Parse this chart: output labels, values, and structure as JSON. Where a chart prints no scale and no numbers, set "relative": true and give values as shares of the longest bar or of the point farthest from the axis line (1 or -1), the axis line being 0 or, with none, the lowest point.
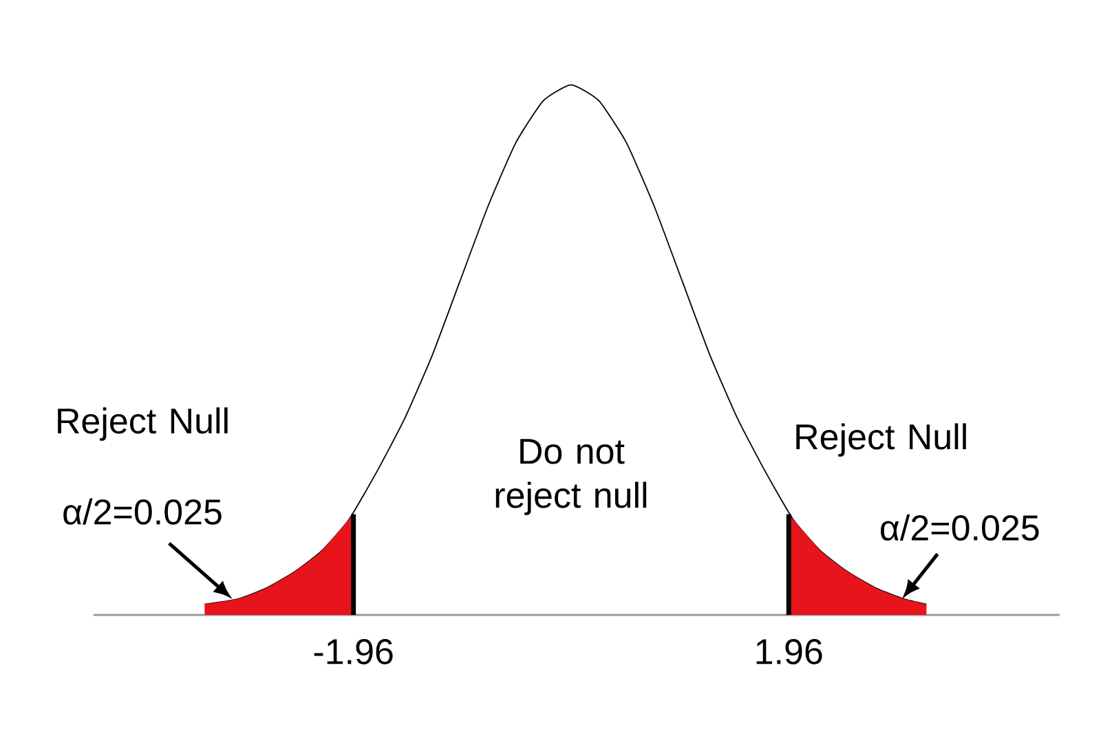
{
  "chart_data": {
    "type": "line",
    "relative": true,
    "xlim": [
      -4.3,
      4.4
    ],
    "xticks": [
      -1.96,
      1.96
    ],
    "tick_labels": "x",
    "series": [
      {
        "color": "#000000",
        "x": [
          -3.3,
          -3.0,
          -2.75,
          -2.5,
          -2.25,
          -2.0,
          -1.75,
          -1.5,
          -1.25,
          -1.0,
          -0.75,
          -0.5,
          -0.25,
          0,
          0.25,
          0.5,
          0.75,
          1.0,
          1.25,
          1.5,
          1.75,
          2.0,
          2.25,
          2.5,
          2.75,
          3.0,
          3.2
        ],
        "values": [
          0.02,
          0.03,
          0.05,
          0.08,
          0.12,
          0.18,
          0.27,
          0.37,
          0.49,
          0.63,
          0.77,
          0.89,
          0.97,
          1,
          0.97,
          0.89,
          0.77,
          0.63,
          0.49,
          0.37,
          0.27,
          0.18,
          0.12,
          0.08,
          0.05,
          0.03,
          0.02
        ]
      },
      {
        "type": "area",
        "color": "#e8141b",
        "x": [
          -3.3,
          -3.0,
          -2.75,
          -2.5,
          -2.25,
          -1.96
        ],
        "values": [
          0.02,
          0.03,
          0.05,
          0.08,
          0.12,
          0.19
        ]
      },
      {
        "type": "area",
        "color": "#e8141b",
        "x": [
          1.96,
          2.25,
          2.5,
          2.75,
          3.0,
          3.2
        ],
        "values": [
          0.19,
          0.12,
          0.08,
          0.05,
          0.03,
          0.02
        ]
      }
    ],
    "ref_lines": [
      {
        "axis": "x",
        "value": -1.96,
        "color": "#000000"
      },
      {
        "axis": "x",
        "value": 1.96,
        "color": "#000000"
      }
    ],
    "annotations": [
      "Reject Null",
      "Do not reject null",
      "Reject Null",
      {
        "text": "α/2=0.025",
        "x": -3.05,
        "y": 0.03
      },
      {
        "text": "α/2=0.025",
        "x": 2.98,
        "y": 0.03
      }
    ]
  }
}
